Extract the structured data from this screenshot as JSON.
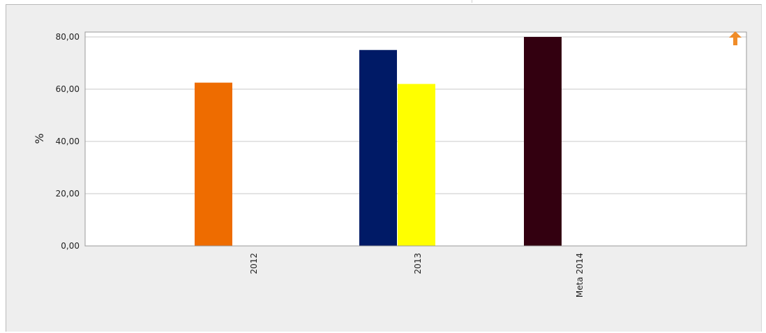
{
  "chart_data": {
    "type": "bar",
    "categories": [
      "2012",
      "2013",
      "Meta 2014"
    ],
    "series": [
      {
        "values": [
          62.5,
          null,
          null
        ],
        "color": "#ee6c00"
      },
      {
        "values": [
          null,
          75,
          null
        ],
        "color": "#001a66"
      },
      {
        "values": [
          null,
          62,
          null
        ],
        "color": "#ffff00"
      },
      {
        "values": [
          null,
          null,
          80
        ],
        "color": "#330010"
      }
    ],
    "ylabel": "%",
    "ylim": [
      0,
      80
    ],
    "yticks": [
      "0,00",
      "20,00",
      "40,00",
      "60,00",
      "80,00"
    ],
    "ytick_values": [
      0,
      20,
      40,
      60,
      80
    ],
    "grid": true,
    "legend": "none"
  },
  "controls": {
    "scroll_up_icon": "up-arrow-icon",
    "scroll_up_color": "#f08c28"
  }
}
